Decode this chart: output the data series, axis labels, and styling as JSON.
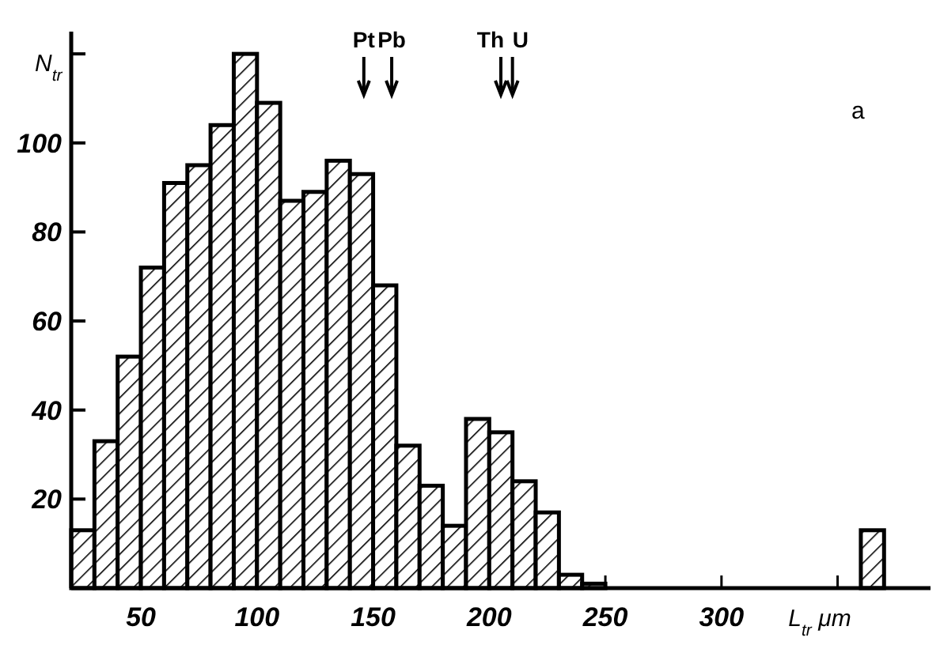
{
  "chart_data": {
    "type": "histogram",
    "xlabel": "L$_{tr}$ μm",
    "ylabel": "N$_{tr}$",
    "bins": [
      20,
      30,
      40,
      50,
      60,
      70,
      80,
      90,
      100,
      110,
      120,
      130,
      140,
      150,
      160,
      170,
      180,
      190,
      200,
      210,
      220,
      230,
      240,
      250,
      260,
      270,
      280,
      290,
      300,
      310,
      320,
      330,
      340,
      350,
      360,
      370
    ],
    "values": [
      13,
      33,
      52,
      72,
      91,
      95,
      104,
      120,
      109,
      87,
      89,
      96,
      93,
      68,
      32,
      23,
      14,
      38,
      35,
      24,
      17,
      3,
      1,
      0,
      0,
      0,
      0,
      0,
      0,
      0,
      0,
      0,
      0,
      0,
      13
    ],
    "color": "#000000",
    "xlim": [
      20,
      390
    ],
    "ylim": [
      0,
      125
    ],
    "xticks": [
      50,
      100,
      150,
      200,
      250,
      300,
      {
        "value": 350,
        "label": null
      }
    ],
    "yticks": [
      20,
      40,
      60,
      80,
      100,
      {
        "value": 120,
        "label": null
      }
    ],
    "grid": false,
    "ref_lines": [
      {
        "axis": "x",
        "value": 146,
        "label": "Pt"
      },
      {
        "axis": "x",
        "value": 158,
        "label": "Pb"
      },
      {
        "axis": "x",
        "value": 205,
        "label": "Th"
      },
      {
        "axis": "x",
        "value": 210,
        "label": "U"
      }
    ],
    "annotations": [
      "a"
    ]
  }
}
